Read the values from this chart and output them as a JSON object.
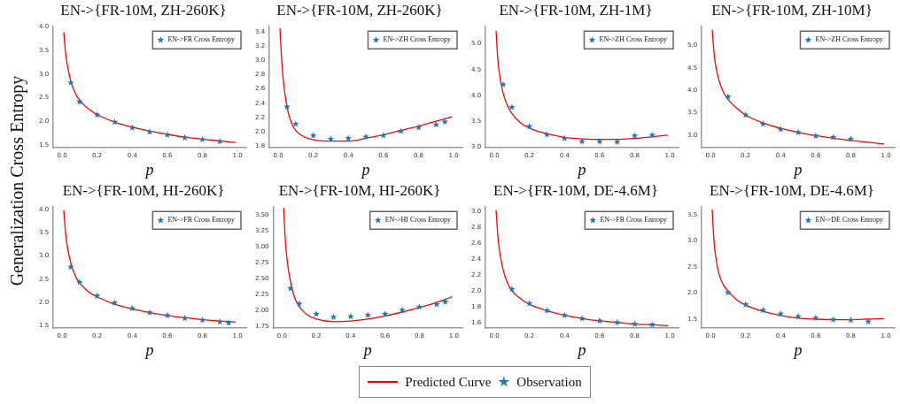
{
  "chart_data": [
    {
      "type": "line",
      "title": "EN->{FR-10M, ZH-260K}",
      "xlabel": "p",
      "ylabel": "Generalization Cross Entropy",
      "xlim": [
        -0.05,
        1.05
      ],
      "ylim": [
        1.45,
        4.0
      ],
      "xticks": [
        {
          "value": 0,
          "label": "0.0"
        },
        {
          "value": 0.2,
          "label": "0.2"
        },
        {
          "value": 0.4,
          "label": "0.4"
        },
        {
          "value": 0.6,
          "label": "0.6"
        },
        {
          "value": 0.8,
          "label": "0.8"
        },
        {
          "value": 1,
          "label": "1.0"
        }
      ],
      "yticks": [
        1.5,
        {
          "value": 2,
          "label": "2.0"
        },
        2.5,
        {
          "value": 3,
          "label": "3.0"
        },
        3.5,
        {
          "value": 4,
          "label": "4.0"
        }
      ],
      "legend": "top right",
      "series": [
        {
          "type": "line",
          "color": "#ff0000",
          "x": [
            0.01,
            0.02,
            0.03,
            0.05,
            0.075,
            0.1,
            0.15,
            0.2,
            0.3,
            0.4,
            0.5,
            0.6,
            0.7,
            0.8,
            0.9,
            0.99
          ],
          "values": [
            3.88,
            3.45,
            3.2,
            2.85,
            2.6,
            2.45,
            2.27,
            2.15,
            1.99,
            1.88,
            1.8,
            1.73,
            1.67,
            1.63,
            1.59,
            1.56
          ]
        },
        {
          "type": "scatter",
          "marker": "star",
          "name": "EN->FR Cross Entropy",
          "color": "#1f77b4",
          "x": [
            0.05,
            0.1,
            0.2,
            0.3,
            0.4,
            0.5,
            0.6,
            0.7,
            0.8,
            0.9
          ],
          "values": [
            2.82,
            2.42,
            2.14,
            1.99,
            1.87,
            1.78,
            1.72,
            1.66,
            1.62,
            1.58
          ]
        }
      ]
    },
    {
      "type": "line",
      "title": "EN->{FR-10M, ZH-260K}",
      "xlabel": "p",
      "xlim": [
        -0.05,
        1.05
      ],
      "ylim": [
        1.78,
        3.47
      ],
      "xticks": [
        {
          "value": 0,
          "label": "0.0"
        },
        {
          "value": 0.2,
          "label": "0.2"
        },
        {
          "value": 0.4,
          "label": "0.4"
        },
        {
          "value": 0.6,
          "label": "0.6"
        },
        {
          "value": 0.8,
          "label": "0.8"
        },
        {
          "value": 1,
          "label": "1.0"
        }
      ],
      "yticks": [
        1.8,
        {
          "value": 2,
          "label": "2.0"
        },
        2.2,
        2.4,
        2.6,
        2.8,
        {
          "value": 3,
          "label": "3.0"
        },
        3.2,
        3.4
      ],
      "legend": "top right",
      "series": [
        {
          "type": "line",
          "color": "#ff0000",
          "x": [
            0.01,
            0.02,
            0.03,
            0.05,
            0.075,
            0.1,
            0.15,
            0.2,
            0.3,
            0.4,
            0.5,
            0.6,
            0.7,
            0.8,
            0.9,
            0.99
          ],
          "values": [
            3.45,
            3.0,
            2.7,
            2.35,
            2.13,
            2.02,
            1.93,
            1.89,
            1.87,
            1.87,
            1.91,
            1.96,
            2.02,
            2.08,
            2.15,
            2.21
          ]
        },
        {
          "type": "scatter",
          "marker": "star",
          "name": "EN->ZH Cross Entropy",
          "color": "#1f77b4",
          "x": [
            0.05,
            0.1,
            0.2,
            0.3,
            0.4,
            0.5,
            0.6,
            0.7,
            0.8,
            0.9,
            0.95
          ],
          "values": [
            2.35,
            2.11,
            1.95,
            1.9,
            1.91,
            1.93,
            1.95,
            2.01,
            2.06,
            2.1,
            2.14
          ]
        }
      ]
    },
    {
      "type": "line",
      "title": "EN->{FR-10M, ZH-1M}",
      "xlabel": "p",
      "xlim": [
        -0.05,
        1.05
      ],
      "ylim": [
        2.99,
        5.33
      ],
      "xticks": [
        {
          "value": 0,
          "label": "0.0"
        },
        {
          "value": 0.2,
          "label": "0.2"
        },
        {
          "value": 0.4,
          "label": "0.4"
        },
        {
          "value": 0.6,
          "label": "0.6"
        },
        {
          "value": 0.8,
          "label": "0.8"
        },
        {
          "value": 1,
          "label": "1.0"
        }
      ],
      "yticks": [
        {
          "value": 3,
          "label": "3.0"
        },
        3.5,
        {
          "value": 4,
          "label": "4.0"
        },
        4.5,
        {
          "value": 5,
          "label": "5.0"
        }
      ],
      "legend": "top right",
      "series": [
        {
          "type": "line",
          "color": "#ff0000",
          "x": [
            0.01,
            0.02,
            0.03,
            0.05,
            0.075,
            0.1,
            0.15,
            0.2,
            0.3,
            0.4,
            0.5,
            0.6,
            0.7,
            0.8,
            0.9,
            0.99
          ],
          "values": [
            5.25,
            4.7,
            4.4,
            4.05,
            3.8,
            3.65,
            3.47,
            3.37,
            3.26,
            3.19,
            3.16,
            3.15,
            3.15,
            3.17,
            3.2,
            3.23
          ]
        },
        {
          "type": "scatter",
          "marker": "star",
          "name": "EN->ZH Cross Entropy",
          "color": "#1f77b4",
          "x": [
            0.05,
            0.1,
            0.2,
            0.3,
            0.4,
            0.5,
            0.6,
            0.7,
            0.8,
            0.9
          ],
          "values": [
            4.21,
            3.77,
            3.4,
            3.24,
            3.17,
            3.11,
            3.11,
            3.1,
            3.22,
            3.23
          ]
        }
      ]
    },
    {
      "type": "line",
      "title": "EN->{FR-10M, ZH-10M}",
      "xlabel": "p",
      "xlim": [
        -0.05,
        1.05
      ],
      "ylim": [
        2.72,
        5.42
      ],
      "xticks": [
        {
          "value": 0,
          "label": "0.0"
        },
        {
          "value": 0.2,
          "label": "0.2"
        },
        {
          "value": 0.4,
          "label": "0.4"
        },
        {
          "value": 0.6,
          "label": "0.6"
        },
        {
          "value": 0.8,
          "label": "0.8"
        },
        {
          "value": 1,
          "label": "1.0"
        }
      ],
      "yticks": [
        {
          "value": 3,
          "label": "3.0"
        },
        3.5,
        {
          "value": 4,
          "label": "4.0"
        },
        4.5,
        {
          "value": 5,
          "label": "5.0"
        }
      ],
      "legend": "top right",
      "series": [
        {
          "type": "line",
          "color": "#ff0000",
          "x": [
            0.01,
            0.02,
            0.03,
            0.05,
            0.075,
            0.1,
            0.15,
            0.2,
            0.3,
            0.4,
            0.5,
            0.6,
            0.7,
            0.8,
            0.9,
            0.99
          ],
          "values": [
            5.35,
            4.85,
            4.55,
            4.2,
            3.95,
            3.8,
            3.6,
            3.45,
            3.27,
            3.15,
            3.06,
            2.99,
            2.93,
            2.88,
            2.84,
            2.8
          ]
        },
        {
          "type": "scatter",
          "marker": "star",
          "name": "EN->ZH Cross Entropy",
          "color": "#1f77b4",
          "x": [
            0.1,
            0.2,
            0.3,
            0.4,
            0.5,
            0.6,
            0.7,
            0.8
          ],
          "values": [
            3.86,
            3.45,
            3.25,
            3.13,
            3.06,
            2.98,
            2.95,
            2.91
          ]
        }
      ]
    },
    {
      "type": "line",
      "title": "EN->{FR-10M, HI-260K}",
      "xlabel": "p",
      "xlim": [
        -0.05,
        1.05
      ],
      "ylim": [
        1.45,
        4.05
      ],
      "xticks": [
        {
          "value": 0,
          "label": "0.0"
        },
        {
          "value": 0.2,
          "label": "0.2"
        },
        {
          "value": 0.4,
          "label": "0.4"
        },
        {
          "value": 0.6,
          "label": "0.6"
        },
        {
          "value": 0.8,
          "label": "0.8"
        },
        {
          "value": 1,
          "label": "1.0"
        }
      ],
      "yticks": [
        1.5,
        {
          "value": 2,
          "label": "2.0"
        },
        2.5,
        {
          "value": 3,
          "label": "3.0"
        },
        3.5,
        {
          "value": 4,
          "label": "4.0"
        }
      ],
      "legend": "top right",
      "series": [
        {
          "type": "line",
          "color": "#ff0000",
          "x": [
            0.01,
            0.02,
            0.03,
            0.05,
            0.075,
            0.1,
            0.15,
            0.2,
            0.3,
            0.4,
            0.5,
            0.6,
            0.7,
            0.8,
            0.9,
            0.99
          ],
          "values": [
            3.98,
            3.5,
            3.2,
            2.85,
            2.57,
            2.42,
            2.23,
            2.12,
            1.96,
            1.86,
            1.78,
            1.72,
            1.67,
            1.63,
            1.6,
            1.58
          ]
        },
        {
          "type": "scatter",
          "marker": "star",
          "name": "EN->FR Cross Entropy",
          "color": "#1f77b4",
          "x": [
            0.05,
            0.1,
            0.2,
            0.3,
            0.4,
            0.5,
            0.6,
            0.7,
            0.8,
            0.9,
            0.95
          ],
          "values": [
            2.76,
            2.43,
            2.14,
            1.99,
            1.87,
            1.78,
            1.72,
            1.66,
            1.62,
            1.58,
            1.56
          ]
        }
      ]
    },
    {
      "type": "line",
      "title": "EN->{FR-10M, HI-260K}",
      "xlabel": "p",
      "xlim": [
        -0.05,
        1.05
      ],
      "ylim": [
        1.73,
        3.63
      ],
      "xticks": [
        {
          "value": 0,
          "label": "0.0"
        },
        {
          "value": 0.2,
          "label": "0.2"
        },
        {
          "value": 0.4,
          "label": "0.4"
        },
        {
          "value": 0.6,
          "label": "0.6"
        },
        {
          "value": 0.8,
          "label": "0.8"
        },
        {
          "value": 1,
          "label": "1.0"
        }
      ],
      "yticks": [
        1.75,
        {
          "value": 2,
          "label": "2.00"
        },
        2.25,
        {
          "value": 2.5,
          "label": "2.50"
        },
        2.75,
        {
          "value": 3,
          "label": "3.00"
        },
        3.25,
        {
          "value": 3.5,
          "label": "3.50"
        }
      ],
      "legend": "top right",
      "series": [
        {
          "type": "line",
          "color": "#ff0000",
          "x": [
            0.01,
            0.02,
            0.03,
            0.05,
            0.075,
            0.1,
            0.15,
            0.2,
            0.3,
            0.4,
            0.5,
            0.6,
            0.7,
            0.8,
            0.9,
            0.99
          ],
          "values": [
            3.62,
            3.1,
            2.8,
            2.45,
            2.2,
            2.07,
            1.93,
            1.87,
            1.83,
            1.84,
            1.87,
            1.92,
            1.98,
            2.05,
            2.13,
            2.22
          ]
        },
        {
          "type": "scatter",
          "marker": "star",
          "name": "EN->HI Cross Entropy",
          "color": "#1f77b4",
          "x": [
            0.05,
            0.1,
            0.2,
            0.3,
            0.4,
            0.5,
            0.6,
            0.7,
            0.8,
            0.9,
            0.95
          ],
          "values": [
            2.35,
            2.11,
            1.95,
            1.9,
            1.91,
            1.93,
            1.95,
            2.01,
            2.06,
            2.1,
            2.14
          ]
        }
      ]
    },
    {
      "type": "line",
      "title": "EN->{FR-10M, DE-4.6M}",
      "xlabel": "p",
      "xlim": [
        -0.05,
        1.05
      ],
      "ylim": [
        1.53,
        3.06
      ],
      "xticks": [
        {
          "value": 0,
          "label": "0.0"
        },
        {
          "value": 0.2,
          "label": "0.2"
        },
        {
          "value": 0.4,
          "label": "0.4"
        },
        {
          "value": 0.6,
          "label": "0.6"
        },
        {
          "value": 0.8,
          "label": "0.8"
        },
        {
          "value": 1,
          "label": "1.0"
        }
      ],
      "yticks": [
        1.6,
        1.8,
        {
          "value": 2,
          "label": "2.0"
        },
        2.2,
        2.4,
        2.6,
        2.8,
        {
          "value": 3,
          "label": "3.0"
        }
      ],
      "legend": "top right",
      "series": [
        {
          "type": "line",
          "color": "#ff0000",
          "x": [
            0.01,
            0.02,
            0.03,
            0.05,
            0.075,
            0.1,
            0.15,
            0.2,
            0.3,
            0.4,
            0.5,
            0.6,
            0.7,
            0.8,
            0.9,
            0.99
          ],
          "values": [
            3.02,
            2.7,
            2.5,
            2.27,
            2.1,
            2.0,
            1.9,
            1.83,
            1.75,
            1.69,
            1.65,
            1.62,
            1.6,
            1.58,
            1.57,
            1.56
          ]
        },
        {
          "type": "scatter",
          "marker": "star",
          "name": "EN->FR Cross Entropy",
          "color": "#1f77b4",
          "x": [
            0.1,
            0.2,
            0.3,
            0.4,
            0.5,
            0.6,
            0.7,
            0.8,
            0.9
          ],
          "values": [
            2.02,
            1.84,
            1.75,
            1.69,
            1.65,
            1.62,
            1.6,
            1.58,
            1.57
          ]
        }
      ]
    },
    {
      "type": "line",
      "title": "EN->{FR-10M, DE-4.6M}",
      "xlabel": "p",
      "xlim": [
        -0.05,
        1.05
      ],
      "ylim": [
        1.33,
        3.65
      ],
      "xticks": [
        {
          "value": 0,
          "label": "0.0"
        },
        {
          "value": 0.2,
          "label": "0.2"
        },
        {
          "value": 0.4,
          "label": "0.4"
        },
        {
          "value": 0.6,
          "label": "0.6"
        },
        {
          "value": 0.8,
          "label": "0.8"
        },
        {
          "value": 1,
          "label": "1.0"
        }
      ],
      "yticks": [
        1.5,
        {
          "value": 2,
          "label": "2.0"
        },
        2.5,
        {
          "value": 3,
          "label": "3.0"
        },
        3.5
      ],
      "legend": "top right",
      "series": [
        {
          "type": "line",
          "color": "#ff0000",
          "x": [
            0.01,
            0.02,
            0.03,
            0.05,
            0.075,
            0.1,
            0.15,
            0.2,
            0.3,
            0.4,
            0.5,
            0.6,
            0.7,
            0.8,
            0.9,
            0.99
          ],
          "values": [
            3.6,
            3.0,
            2.7,
            2.35,
            2.15,
            2.04,
            1.87,
            1.77,
            1.65,
            1.57,
            1.52,
            1.5,
            1.49,
            1.49,
            1.5,
            1.51
          ]
        },
        {
          "type": "scatter",
          "marker": "star",
          "name": "EN->DE Cross Entropy",
          "color": "#1f77b4",
          "x": [
            0.1,
            0.2,
            0.3,
            0.4,
            0.5,
            0.6,
            0.7,
            0.8,
            0.9
          ],
          "values": [
            2.01,
            1.78,
            1.67,
            1.6,
            1.55,
            1.52,
            1.49,
            1.48,
            1.45
          ]
        }
      ]
    },
    {
      "type": "other",
      "annotations": [
        "Predicted Curve",
        "Observation"
      ]
    }
  ]
}
